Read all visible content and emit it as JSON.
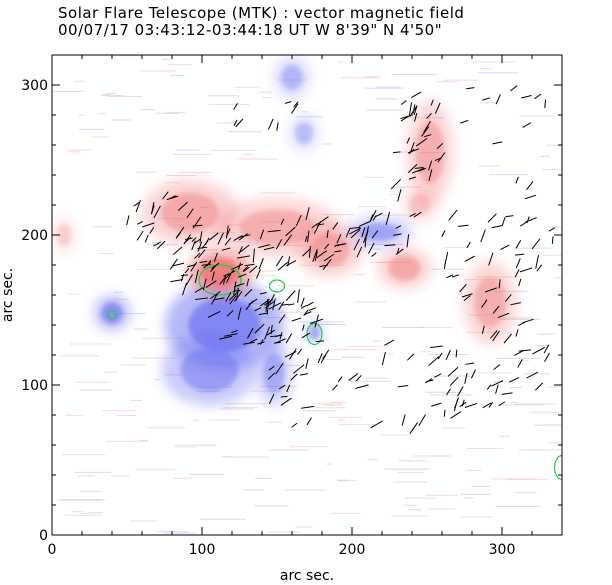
{
  "header": {
    "title": "Solar Flare Telescope (MTK) : vector magnetic field",
    "subtitle": "00/07/17  03:43:12-03:44:18 UT    W 8'39\"  N 4'50\""
  },
  "axes": {
    "xlabel": "arc sec.",
    "ylabel": "arc sec.",
    "xlim": [
      0,
      340
    ],
    "ylim": [
      0,
      320
    ],
    "xticks": [
      0,
      100,
      200,
      300
    ],
    "yticks": [
      0,
      100,
      200,
      300
    ]
  },
  "colors": {
    "positive": "#f07070",
    "negative": "#6a70f0",
    "contour": "#22cc44",
    "vector": "#000000"
  },
  "field": {
    "positive_regions": [
      {
        "x": 112,
        "y": 175,
        "rx": 22,
        "ry": 16,
        "s": 1.0
      },
      {
        "x": 92,
        "y": 215,
        "rx": 32,
        "ry": 22,
        "s": 0.55
      },
      {
        "x": 150,
        "y": 205,
        "rx": 42,
        "ry": 20,
        "s": 0.5
      },
      {
        "x": 185,
        "y": 190,
        "rx": 22,
        "ry": 18,
        "s": 0.55
      },
      {
        "x": 235,
        "y": 178,
        "rx": 18,
        "ry": 14,
        "s": 0.55
      },
      {
        "x": 252,
        "y": 255,
        "rx": 16,
        "ry": 35,
        "s": 0.5
      },
      {
        "x": 292,
        "y": 155,
        "rx": 18,
        "ry": 28,
        "s": 0.5
      },
      {
        "x": 245,
        "y": 220,
        "rx": 12,
        "ry": 12,
        "s": 0.35
      },
      {
        "x": 8,
        "y": 200,
        "rx": 8,
        "ry": 12,
        "s": 0.3
      }
    ],
    "negative_regions": [
      {
        "x": 115,
        "y": 140,
        "rx": 40,
        "ry": 30,
        "s": 0.9
      },
      {
        "x": 40,
        "y": 148,
        "rx": 12,
        "ry": 12,
        "s": 0.8
      },
      {
        "x": 105,
        "y": 110,
        "rx": 32,
        "ry": 24,
        "s": 0.65
      },
      {
        "x": 148,
        "y": 108,
        "rx": 12,
        "ry": 22,
        "s": 0.55
      },
      {
        "x": 218,
        "y": 202,
        "rx": 22,
        "ry": 10,
        "s": 0.6
      },
      {
        "x": 160,
        "y": 305,
        "rx": 12,
        "ry": 14,
        "s": 0.45
      },
      {
        "x": 168,
        "y": 268,
        "rx": 10,
        "ry": 12,
        "s": 0.4
      },
      {
        "x": 175,
        "y": 135,
        "rx": 6,
        "ry": 8,
        "s": 0.6
      }
    ],
    "contours": [
      {
        "x": 112,
        "y": 170,
        "rx": 14,
        "ry": 10
      },
      {
        "x": 175,
        "y": 134,
        "rx": 5,
        "ry": 7
      },
      {
        "x": 40,
        "y": 147,
        "rx": 3,
        "ry": 3
      },
      {
        "x": 150,
        "y": 166,
        "rx": 5,
        "ry": 4
      },
      {
        "x": 340,
        "y": 45,
        "rx": 5,
        "ry": 8
      }
    ],
    "vector_areas": [
      {
        "x": 110,
        "y": 180,
        "rx": 30,
        "ry": 25,
        "n": 70
      },
      {
        "x": 140,
        "y": 145,
        "rx": 40,
        "ry": 20,
        "n": 55
      },
      {
        "x": 80,
        "y": 210,
        "rx": 30,
        "ry": 18,
        "n": 25
      },
      {
        "x": 165,
        "y": 195,
        "rx": 30,
        "ry": 20,
        "n": 35
      },
      {
        "x": 220,
        "y": 200,
        "rx": 25,
        "ry": 15,
        "n": 25
      },
      {
        "x": 245,
        "y": 255,
        "rx": 18,
        "ry": 45,
        "n": 35
      },
      {
        "x": 300,
        "y": 190,
        "rx": 40,
        "ry": 55,
        "n": 45
      },
      {
        "x": 290,
        "y": 110,
        "rx": 45,
        "ry": 30,
        "n": 30
      },
      {
        "x": 230,
        "y": 100,
        "rx": 70,
        "ry": 30,
        "n": 30
      },
      {
        "x": 170,
        "y": 100,
        "rx": 25,
        "ry": 40,
        "n": 20
      },
      {
        "x": 300,
        "y": 285,
        "rx": 30,
        "ry": 25,
        "n": 10
      },
      {
        "x": 140,
        "y": 282,
        "rx": 30,
        "ry": 12,
        "n": 8
      }
    ]
  }
}
